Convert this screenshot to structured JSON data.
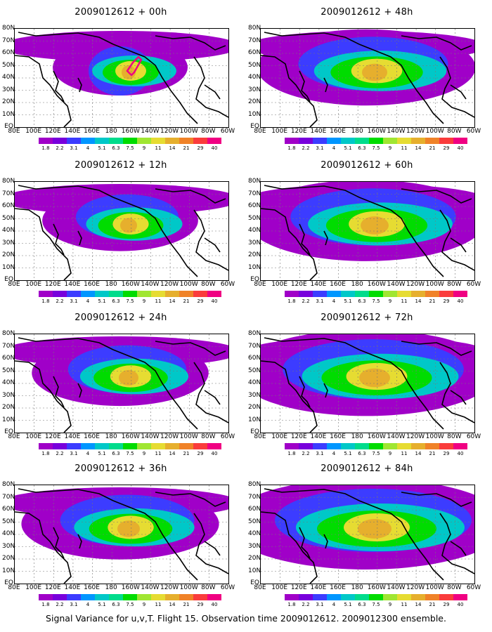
{
  "panels": [
    {
      "id": "p00",
      "title": "2009012612 + 00h",
      "lead": 0
    },
    {
      "id": "p12",
      "title": "2009012612 + 12h",
      "lead": 12
    },
    {
      "id": "p24",
      "title": "2009012612 + 24h",
      "lead": 24
    },
    {
      "id": "p36",
      "title": "2009012612 + 36h",
      "lead": 36
    },
    {
      "id": "p48",
      "title": "2009012612 + 48h",
      "lead": 48
    },
    {
      "id": "p60",
      "title": "2009012612 + 60h",
      "lead": 60
    },
    {
      "id": "p72",
      "title": "2009012612 + 72h",
      "lead": 72
    },
    {
      "id": "p84",
      "title": "2009012612 + 84h",
      "lead": 84
    }
  ],
  "lat_labels": [
    "80N",
    "70N",
    "60N",
    "50N",
    "40N",
    "30N",
    "20N",
    "10N",
    "EQ"
  ],
  "lon_labels": [
    "80E",
    "100E",
    "120E",
    "140E",
    "160E",
    "180",
    "160W",
    "140W",
    "120W",
    "100W",
    "80W",
    "60W"
  ],
  "colorbar": {
    "levels": [
      "1.8",
      "2.2",
      "3.1",
      "4",
      "5.1",
      "6.3",
      "7.5",
      "9",
      "11",
      "14",
      "21",
      "29",
      "40"
    ],
    "colors": [
      "#a000c8",
      "#7800dc",
      "#3c3cff",
      "#0096ff",
      "#00c8c8",
      "#00dc8c",
      "#00dc00",
      "#a0e632",
      "#e6dc32",
      "#e6af2d",
      "#f08228",
      "#fa3c3c",
      "#f00082"
    ]
  },
  "caption": "Signal Variance for u,v,T. Flight 15. Observation time 2009012612. 2009012300 ensemble."
}
